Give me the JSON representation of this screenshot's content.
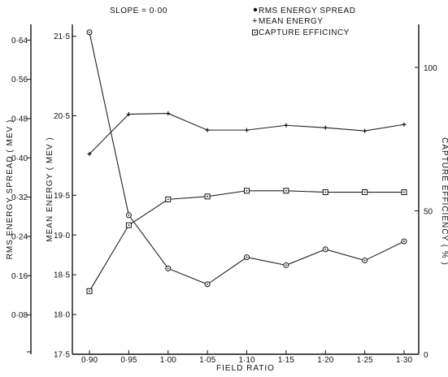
{
  "chart_data": {
    "type": "line",
    "title": "SLOPE = 0·00",
    "xlabel": "FIELD RATIO",
    "x_ticks": [
      "0·90",
      "0·95",
      "1·00",
      "1·05",
      "1·10",
      "1·15",
      "1·20",
      "1·25",
      "1·30"
    ],
    "x": [
      0.9,
      0.95,
      1.0,
      1.05,
      1.1,
      1.15,
      1.2,
      1.25,
      1.3
    ],
    "axes": {
      "rms": {
        "label": "RMS ENERGY SPREAD ( MEV )",
        "ticks": [
          "0·08",
          "0·16",
          "0·24",
          "0·32",
          "0·40",
          "0·48",
          "0·56",
          "0·64"
        ],
        "tick_values": [
          0.08,
          0.16,
          0.24,
          0.32,
          0.4,
          0.48,
          0.56,
          0.64
        ],
        "ylim": [
          0.0,
          0.672
        ]
      },
      "mean": {
        "label": "MEAN ENERGY ( MEV )",
        "ticks": [
          "17·5",
          "18·0",
          "18·5",
          "19·0",
          "19·5",
          "20·5",
          "21·5"
        ],
        "tick_values": [
          17.5,
          18.0,
          18.5,
          19.0,
          19.5,
          20.5,
          21.5
        ],
        "ylim": [
          17.5,
          21.65
        ]
      },
      "capture": {
        "label": "CAPTURE EFFICIENCY ( % )",
        "ticks": [
          "0",
          "50",
          "100"
        ],
        "tick_values": [
          0,
          50,
          100
        ],
        "ylim": [
          0,
          115
        ]
      }
    },
    "series": [
      {
        "name": "RMS ENERGY SPREAD",
        "marker": "circle",
        "axis": "mean",
        "values": [
          21.55,
          19.25,
          18.58,
          18.38,
          18.72,
          18.62,
          18.82,
          18.68,
          18.92
        ]
      },
      {
        "name": "MEAN ENERGY",
        "marker": "plus",
        "axis": "mean",
        "values": [
          20.02,
          20.52,
          20.53,
          20.32,
          20.32,
          20.38,
          20.35,
          20.31,
          20.39
        ]
      },
      {
        "name": "CAPTURE EFFICIENCY",
        "marker": "square",
        "axis": "capture",
        "values": [
          22,
          45,
          54,
          55,
          57,
          57,
          56.5,
          56.5,
          56.5
        ]
      }
    ],
    "legend": {
      "placement": "top-right",
      "entries": [
        "RMS ENERGY SPREAD",
        "MEAN ENERGY",
        "CAPTURE EFFICINCY"
      ]
    },
    "grid": false
  }
}
